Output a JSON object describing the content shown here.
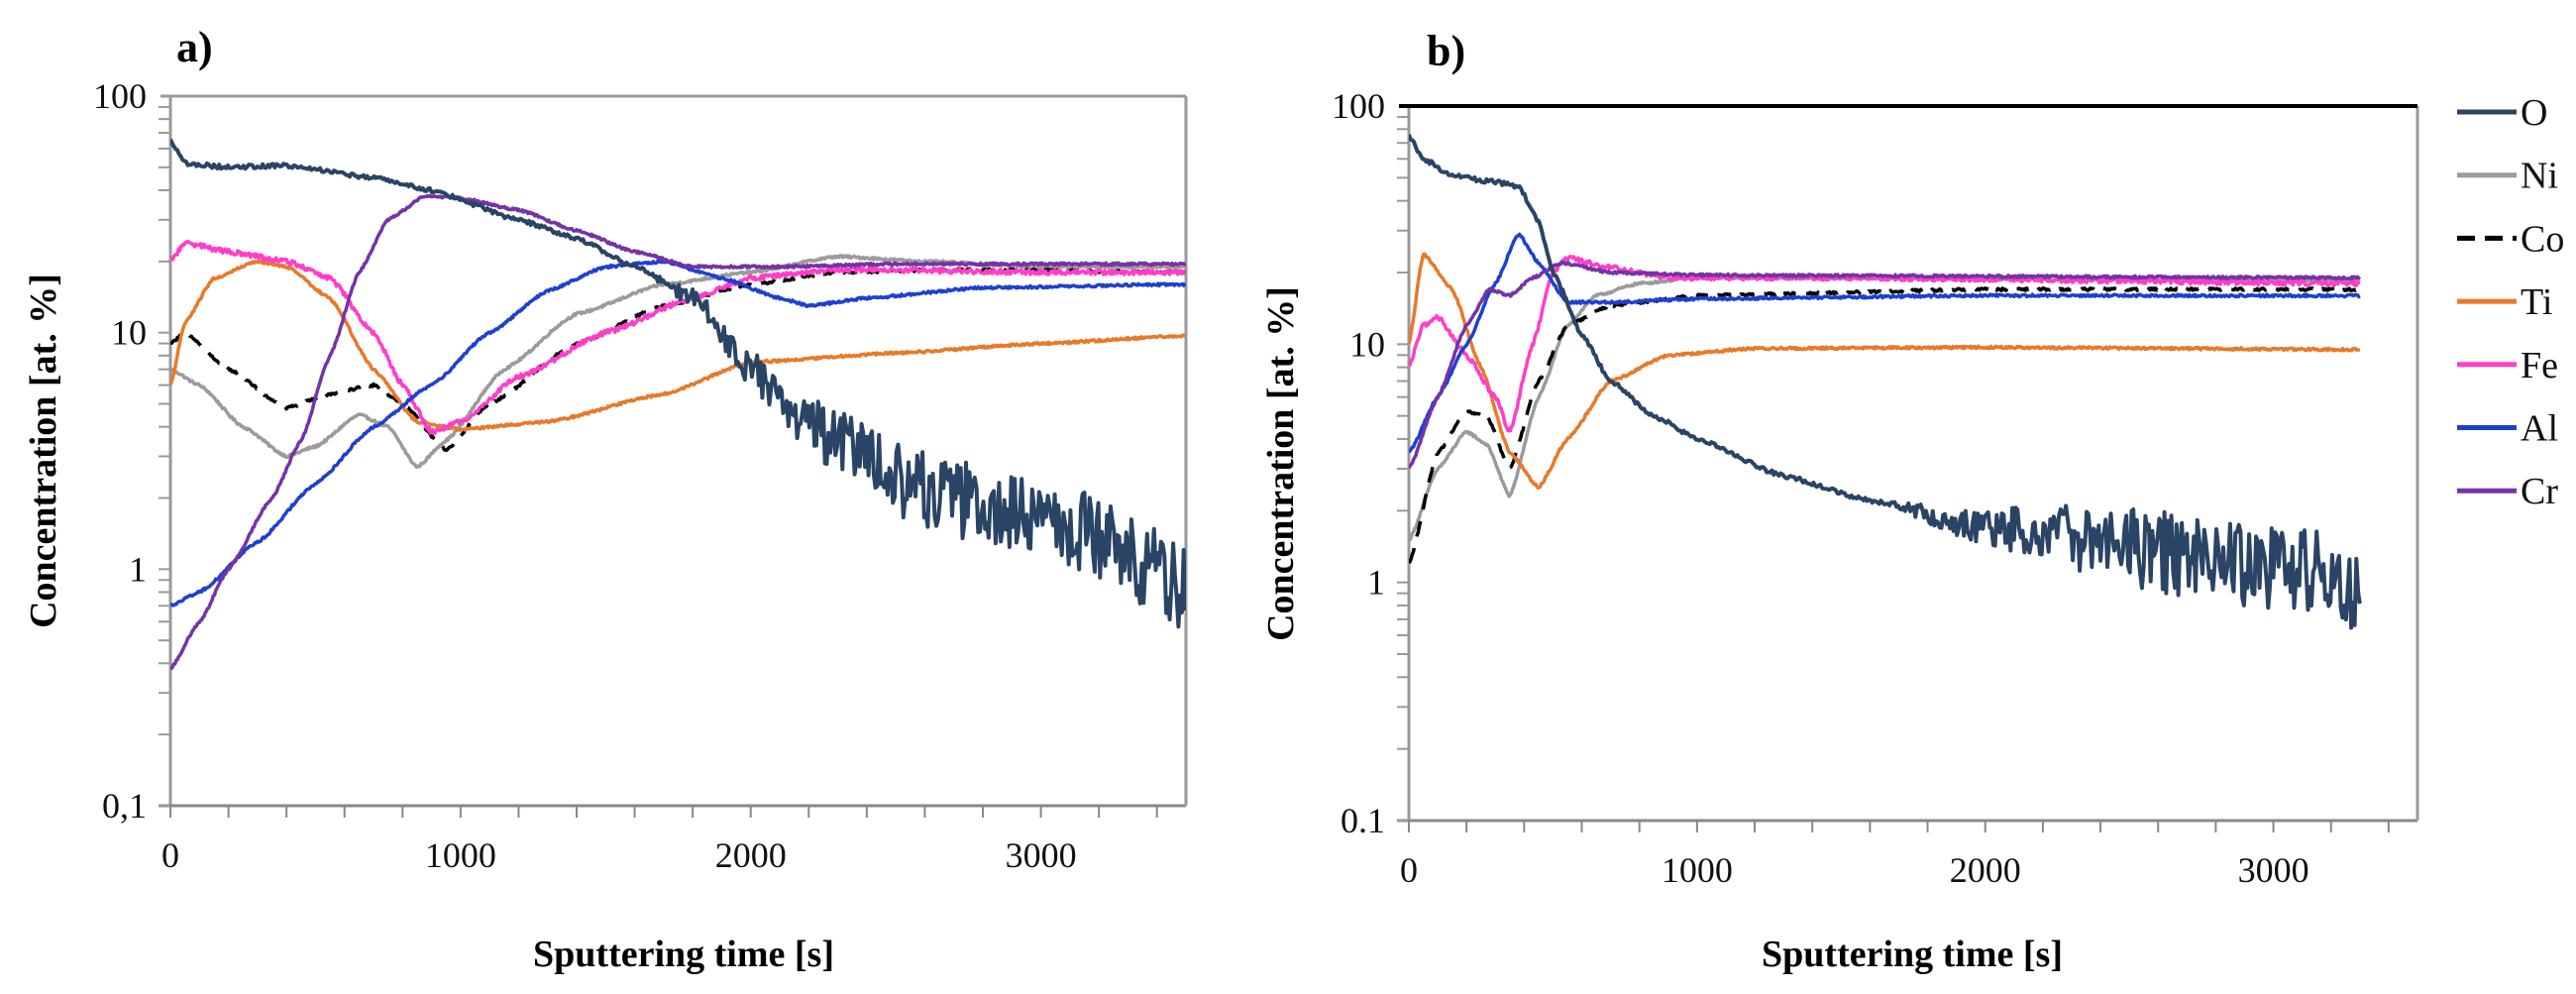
{
  "figure": {
    "legend": {
      "placement": "right",
      "items": [
        {
          "name": "O",
          "color": "#2a4466",
          "dash": false
        },
        {
          "name": "Ni",
          "color": "#9b9b9b",
          "dash": false
        },
        {
          "name": "Co",
          "color": "#000000",
          "dash": true
        },
        {
          "name": "Ti",
          "color": "#e8792a",
          "dash": false
        },
        {
          "name": "Fe",
          "color": "#ff3ec8",
          "dash": false
        },
        {
          "name": "Al",
          "color": "#1e40d0",
          "dash": false
        },
        {
          "name": "Cr",
          "color": "#7433a6",
          "dash": false
        }
      ]
    }
  },
  "chart_data": [
    {
      "type": "line",
      "panel_label": "a)",
      "title": "",
      "xlabel": "Sputtering time [s]",
      "ylabel": "Concentration [at. %]",
      "xlim": [
        0,
        3500
      ],
      "ylim": [
        0.1,
        100
      ],
      "yscale": "log",
      "grid": false,
      "x_ticks": [
        0,
        1000,
        2000,
        3000
      ],
      "x_tick_labels": [
        "0",
        "1000",
        "2000",
        "3000"
      ],
      "x_minor_tick_step": 200,
      "y_ticks": [
        100,
        10,
        1,
        0.1
      ],
      "y_tick_labels": [
        "100",
        "10",
        "1",
        "0,1"
      ],
      "top_border": "gray",
      "series": [
        {
          "name": "O",
          "noise": 0.35,
          "points": [
            [
              0,
              65
            ],
            [
              50,
              52
            ],
            [
              200,
              50
            ],
            [
              400,
              51
            ],
            [
              700,
              45
            ],
            [
              900,
              40
            ],
            [
              1200,
              30
            ],
            [
              1400,
              25
            ],
            [
              1600,
              19
            ],
            [
              1800,
              14
            ],
            [
              2000,
              7
            ],
            [
              2200,
              4
            ],
            [
              2500,
              2.5
            ],
            [
              2800,
              1.8
            ],
            [
              3100,
              1.5
            ],
            [
              3400,
              1.0
            ],
            [
              3500,
              0.8
            ]
          ]
        },
        {
          "name": "Ni",
          "noise": 0.01,
          "points": [
            [
              0,
              7
            ],
            [
              100,
              6
            ],
            [
              250,
              4
            ],
            [
              400,
              3
            ],
            [
              500,
              3.3
            ],
            [
              650,
              4.5
            ],
            [
              750,
              4
            ],
            [
              850,
              2.7
            ],
            [
              950,
              3.5
            ],
            [
              1150,
              7
            ],
            [
              1400,
              12
            ],
            [
              1700,
              16
            ],
            [
              2000,
              18
            ],
            [
              2300,
              21
            ],
            [
              2600,
              20
            ],
            [
              3000,
              19
            ],
            [
              3500,
              19
            ]
          ]
        },
        {
          "name": "Co",
          "noise": 0.01,
          "points": [
            [
              0,
              9
            ],
            [
              50,
              10
            ],
            [
              200,
              7
            ],
            [
              400,
              4.8
            ],
            [
              550,
              5.5
            ],
            [
              700,
              6
            ],
            [
              800,
              5
            ],
            [
              950,
              3.2
            ],
            [
              1100,
              5
            ],
            [
              1400,
              9
            ],
            [
              1700,
              13
            ],
            [
              2000,
              16
            ],
            [
              2300,
              18
            ],
            [
              2700,
              18.5
            ],
            [
              3500,
              18
            ]
          ]
        },
        {
          "name": "Ti",
          "noise": 0.01,
          "points": [
            [
              0,
              6
            ],
            [
              50,
              11
            ],
            [
              150,
              17
            ],
            [
              300,
              20
            ],
            [
              400,
              19
            ],
            [
              550,
              14
            ],
            [
              700,
              7
            ],
            [
              850,
              4.2
            ],
            [
              1000,
              3.9
            ],
            [
              1300,
              4.2
            ],
            [
              1700,
              5.5
            ],
            [
              2000,
              7.5
            ],
            [
              2500,
              8.2
            ],
            [
              3000,
              9
            ],
            [
              3500,
              9.7
            ]
          ]
        },
        {
          "name": "Fe",
          "noise": 0.02,
          "points": [
            [
              0,
              20
            ],
            [
              50,
              24
            ],
            [
              200,
              22
            ],
            [
              400,
              20
            ],
            [
              550,
              17
            ],
            [
              700,
              10
            ],
            [
              800,
              6
            ],
            [
              900,
              3.8
            ],
            [
              1000,
              4.2
            ],
            [
              1200,
              6.5
            ],
            [
              1500,
              10
            ],
            [
              1800,
              14
            ],
            [
              2000,
              17
            ],
            [
              2300,
              18.5
            ],
            [
              3000,
              18
            ],
            [
              3500,
              18
            ]
          ]
        },
        {
          "name": "Al",
          "noise": 0.01,
          "points": [
            [
              0,
              0.7
            ],
            [
              100,
              0.8
            ],
            [
              300,
              1.3
            ],
            [
              500,
              2.3
            ],
            [
              700,
              4
            ],
            [
              900,
              6
            ],
            [
              1100,
              10
            ],
            [
              1300,
              15
            ],
            [
              1500,
              19
            ],
            [
              1700,
              20
            ],
            [
              1900,
              17
            ],
            [
              2100,
              14
            ],
            [
              2200,
              13
            ],
            [
              2400,
              14
            ],
            [
              2800,
              15.5
            ],
            [
              3500,
              16
            ]
          ]
        },
        {
          "name": "Cr",
          "noise": 0.01,
          "points": [
            [
              0,
              0.38
            ],
            [
              100,
              0.6
            ],
            [
              200,
              1
            ],
            [
              350,
              2
            ],
            [
              450,
              3.5
            ],
            [
              550,
              8
            ],
            [
              650,
              18
            ],
            [
              750,
              30
            ],
            [
              880,
              38
            ],
            [
              1000,
              37
            ],
            [
              1200,
              33
            ],
            [
              1400,
              27
            ],
            [
              1600,
              22
            ],
            [
              1800,
              19
            ],
            [
              2100,
              19
            ],
            [
              2500,
              19.5
            ],
            [
              3500,
              19.5
            ]
          ]
        }
      ]
    },
    {
      "type": "line",
      "panel_label": "b)",
      "title": "",
      "xlabel": "Sputtering time [s]",
      "ylabel": "Concentration [at. %]",
      "xlim": [
        0,
        3500
      ],
      "ylim": [
        0.1,
        100
      ],
      "yscale": "log",
      "grid": false,
      "x_ticks": [
        0,
        1000,
        2000,
        3000
      ],
      "x_tick_labels": [
        "0",
        "1000",
        "2000",
        "3000"
      ],
      "x_minor_tick_step": 200,
      "y_ticks": [
        100,
        10,
        1,
        0.1
      ],
      "y_tick_labels": [
        "100",
        "10",
        "1",
        "0.1"
      ],
      "top_border": "black",
      "series": [
        {
          "name": "O",
          "noise": 0.35,
          "points": [
            [
              0,
              75
            ],
            [
              50,
              60
            ],
            [
              150,
              51
            ],
            [
              300,
              48
            ],
            [
              380,
              46
            ],
            [
              450,
              33
            ],
            [
              500,
              20
            ],
            [
              600,
              11
            ],
            [
              700,
              7
            ],
            [
              850,
              5
            ],
            [
              1000,
              4
            ],
            [
              1300,
              2.8
            ],
            [
              1600,
              2.2
            ],
            [
              2000,
              1.7
            ],
            [
              2400,
              1.5
            ],
            [
              2800,
              1.2
            ],
            [
              3200,
              1.1
            ],
            [
              3300,
              0.9
            ]
          ]
        },
        {
          "name": "Ni",
          "noise": 0.01,
          "points": [
            [
              0,
              1.5
            ],
            [
              100,
              3
            ],
            [
              200,
              4.3
            ],
            [
              270,
              3.8
            ],
            [
              350,
              2.3
            ],
            [
              450,
              6
            ],
            [
              550,
              12
            ],
            [
              650,
              16
            ],
            [
              800,
              18
            ],
            [
              1000,
              19
            ],
            [
              3300,
              18.5
            ]
          ]
        },
        {
          "name": "Co",
          "noise": 0.01,
          "points": [
            [
              0,
              1.2
            ],
            [
              100,
              3.5
            ],
            [
              200,
              5.2
            ],
            [
              270,
              5
            ],
            [
              350,
              3
            ],
            [
              450,
              7
            ],
            [
              550,
              12
            ],
            [
              700,
              14.5
            ],
            [
              1000,
              16
            ],
            [
              2000,
              17
            ],
            [
              3300,
              17
            ]
          ]
        },
        {
          "name": "Ti",
          "noise": 0.01,
          "points": [
            [
              0,
              10
            ],
            [
              50,
              24
            ],
            [
              150,
              17
            ],
            [
              250,
              8
            ],
            [
              350,
              3.5
            ],
            [
              450,
              2.5
            ],
            [
              550,
              4
            ],
            [
              700,
              7
            ],
            [
              900,
              9
            ],
            [
              1200,
              9.6
            ],
            [
              2000,
              9.7
            ],
            [
              3300,
              9.5
            ]
          ]
        },
        {
          "name": "Fe",
          "noise": 0.02,
          "points": [
            [
              0,
              8
            ],
            [
              50,
              12
            ],
            [
              100,
              13
            ],
            [
              200,
              9
            ],
            [
              300,
              6
            ],
            [
              350,
              4.3
            ],
            [
              430,
              10
            ],
            [
              500,
              20
            ],
            [
              550,
              23
            ],
            [
              700,
              21
            ],
            [
              900,
              19
            ],
            [
              1500,
              19
            ],
            [
              3300,
              18
            ]
          ]
        },
        {
          "name": "Al",
          "noise": 0.01,
          "points": [
            [
              0,
              3.5
            ],
            [
              100,
              6
            ],
            [
              200,
              10
            ],
            [
              300,
              18
            ],
            [
              380,
              29
            ],
            [
              450,
              22
            ],
            [
              550,
              15
            ],
            [
              700,
              15
            ],
            [
              1000,
              15.5
            ],
            [
              2000,
              16
            ],
            [
              3300,
              16
            ]
          ]
        },
        {
          "name": "Cr",
          "noise": 0.01,
          "points": [
            [
              0,
              3
            ],
            [
              100,
              6
            ],
            [
              200,
              12
            ],
            [
              280,
              17
            ],
            [
              350,
              16
            ],
            [
              430,
              19
            ],
            [
              530,
              22
            ],
            [
              700,
              20
            ],
            [
              1000,
              19.5
            ],
            [
              3300,
              19
            ]
          ]
        }
      ]
    }
  ]
}
